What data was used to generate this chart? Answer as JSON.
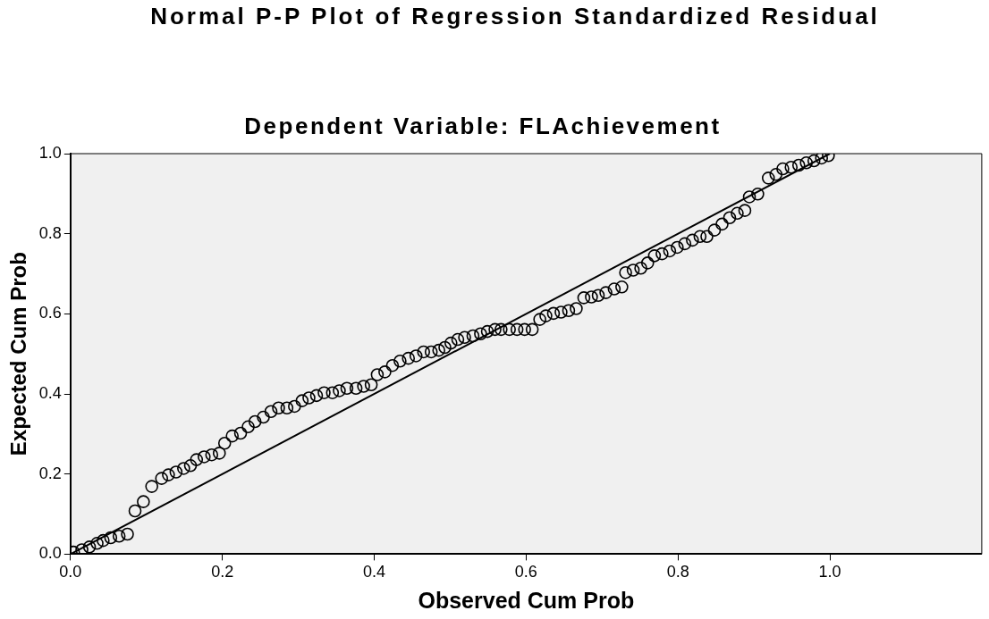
{
  "chart_data": {
    "type": "scatter",
    "title": "Normal P-P Plot of Regression Standardized Residual",
    "subtitle": "Dependent Variable: FLAchievement",
    "xlabel": "Observed Cum Prob",
    "ylabel": "Expected Cum Prob",
    "xlim": [
      0,
      1.2
    ],
    "xticks": [
      {
        "value": 0,
        "label": "0.0"
      },
      0.2,
      0.4,
      0.6,
      0.8,
      {
        "value": 1,
        "label": "1.0"
      }
    ],
    "ylim": [
      0,
      1
    ],
    "yticks": [
      {
        "value": 0,
        "label": "0.0"
      },
      0.2,
      0.4,
      0.6,
      0.8,
      {
        "value": 1,
        "label": "1.0"
      }
    ],
    "grid": false,
    "legend": false,
    "marker": "circle",
    "series": [
      {
        "color": "#000000",
        "x": [
          0.004,
          0.015,
          0.025,
          0.035,
          0.043,
          0.053,
          0.064,
          0.075,
          0.085,
          0.096,
          0.107,
          0.12,
          0.129,
          0.139,
          0.149,
          0.158,
          0.166,
          0.176,
          0.186,
          0.196,
          0.203,
          0.213,
          0.224,
          0.234,
          0.243,
          0.254,
          0.264,
          0.274,
          0.285,
          0.295,
          0.305,
          0.314,
          0.324,
          0.334,
          0.345,
          0.354,
          0.364,
          0.376,
          0.386,
          0.396,
          0.404,
          0.414,
          0.424,
          0.434,
          0.445,
          0.455,
          0.465,
          0.475,
          0.485,
          0.493,
          0.501,
          0.51,
          0.519,
          0.53,
          0.54,
          0.549,
          0.559,
          0.567,
          0.578,
          0.588,
          0.598,
          0.608,
          0.618,
          0.626,
          0.636,
          0.646,
          0.656,
          0.666,
          0.676,
          0.686,
          0.695,
          0.705,
          0.716,
          0.726,
          0.731,
          0.741,
          0.751,
          0.76,
          0.769,
          0.779,
          0.789,
          0.799,
          0.809,
          0.819,
          0.829,
          0.838,
          0.848,
          0.858,
          0.868,
          0.878,
          0.888,
          0.894,
          0.905,
          0.919,
          0.929,
          0.938,
          0.949,
          0.959,
          0.969,
          0.979,
          0.989,
          0.998
        ],
        "values": [
          0.005,
          0.011,
          0.018,
          0.027,
          0.034,
          0.041,
          0.045,
          0.05,
          0.108,
          0.131,
          0.169,
          0.189,
          0.198,
          0.205,
          0.214,
          0.221,
          0.236,
          0.243,
          0.248,
          0.252,
          0.277,
          0.295,
          0.302,
          0.318,
          0.331,
          0.342,
          0.356,
          0.365,
          0.365,
          0.369,
          0.383,
          0.39,
          0.396,
          0.403,
          0.403,
          0.408,
          0.414,
          0.414,
          0.419,
          0.423,
          0.448,
          0.455,
          0.471,
          0.482,
          0.489,
          0.495,
          0.505,
          0.505,
          0.509,
          0.516,
          0.527,
          0.536,
          0.541,
          0.545,
          0.55,
          0.556,
          0.561,
          0.561,
          0.561,
          0.561,
          0.561,
          0.561,
          0.586,
          0.595,
          0.601,
          0.604,
          0.608,
          0.613,
          0.64,
          0.642,
          0.646,
          0.653,
          0.662,
          0.667,
          0.703,
          0.709,
          0.714,
          0.727,
          0.745,
          0.75,
          0.757,
          0.766,
          0.775,
          0.784,
          0.793,
          0.793,
          0.809,
          0.824,
          0.84,
          0.851,
          0.858,
          0.892,
          0.899,
          0.939,
          0.948,
          0.962,
          0.966,
          0.971,
          0.977,
          0.982,
          0.989,
          0.995
        ]
      },
      {
        "type": "line",
        "color": "#000000",
        "x": [
          0,
          1
        ],
        "values": [
          0,
          1
        ],
        "marker": "none",
        "line_style": "solid"
      }
    ]
  }
}
